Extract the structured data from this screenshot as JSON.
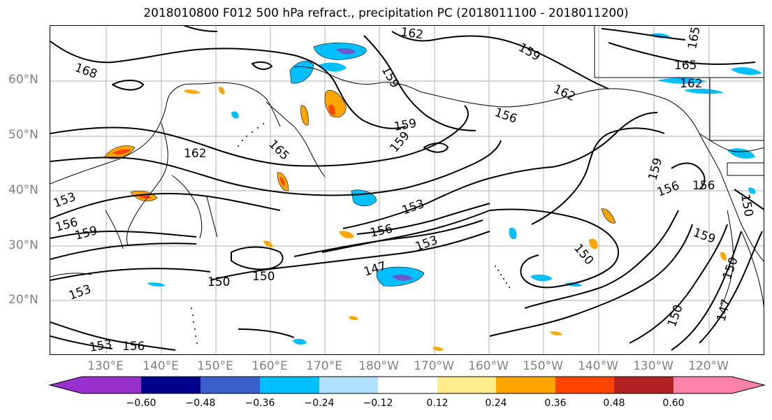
{
  "title": "2018010800 F012 500 hPa refract., precipitation PC (2018011100 - 2018011200)",
  "lat_labels": [
    "60°N",
    "50°N",
    "40°N",
    "30°N",
    "20°N"
  ],
  "lon_labels": [
    "130°E",
    "140°E",
    "150°E",
    "160°E",
    "170°E",
    "180°W",
    "170°W",
    "160°W",
    "150°W",
    "140°W",
    "130°W",
    "120°W"
  ],
  "contour_labels": [
    "168",
    "162",
    "159",
    "159",
    "162",
    "165",
    "165",
    "162",
    "156",
    "159",
    "159",
    "162",
    "165",
    "159",
    "156",
    "156",
    "150",
    "153",
    "159",
    "156",
    "153",
    "156",
    "153",
    "147",
    "150",
    "150",
    "150",
    "153",
    "150",
    "147",
    "153",
    "156",
    "150",
    "159"
  ],
  "colorbar": {
    "tick_labels": [
      "−0.60",
      "−0.48",
      "−0.36",
      "−0.24",
      "−0.12",
      "0.12",
      "0.24",
      "0.36",
      "0.48",
      "0.60"
    ],
    "colors": [
      "#9932CC",
      "#00008B",
      "#3A5FCD",
      "#00BFFF",
      "#B0E2FF",
      "#FFFFFF",
      "#FFEC8B",
      "#FFA500",
      "#FF4500",
      "#B22222",
      "#FF82AB"
    ]
  },
  "colors": {
    "lat_lon_label": "#808080",
    "contour": "#000000",
    "grid": "#b0b0b0"
  }
}
